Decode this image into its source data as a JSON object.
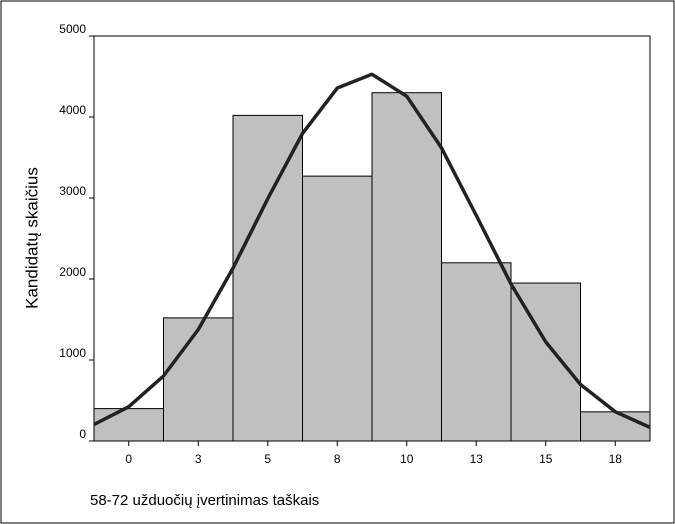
{
  "chart_data": {
    "type": "bar",
    "y_label": "Kandidatų skaičius",
    "x_label": "58-72 užduočių įvertinimas taškais",
    "categories": [
      "0",
      "3",
      "5",
      "8",
      "10",
      "13",
      "15",
      "18"
    ],
    "values": [
      400,
      1520,
      4020,
      3270,
      4300,
      2200,
      1950,
      360
    ],
    "color": "#c0c0c0",
    "ylim": [
      0,
      5000
    ],
    "yticks": [
      0,
      1000,
      2000,
      3000,
      4000,
      5000
    ],
    "curve": {
      "x": [
        -0.5,
        0,
        0.5,
        1,
        1.5,
        2,
        2.5,
        3,
        3.5,
        4,
        4.5,
        5,
        5.5,
        6,
        6.5,
        7,
        7.5
      ],
      "values": [
        204,
        424,
        803,
        1377,
        2134,
        2992,
        3796,
        4358,
        4527,
        4255,
        3618,
        2784,
        1938,
        1222,
        698,
        360,
        168
      ],
      "color": "#222222"
    }
  }
}
